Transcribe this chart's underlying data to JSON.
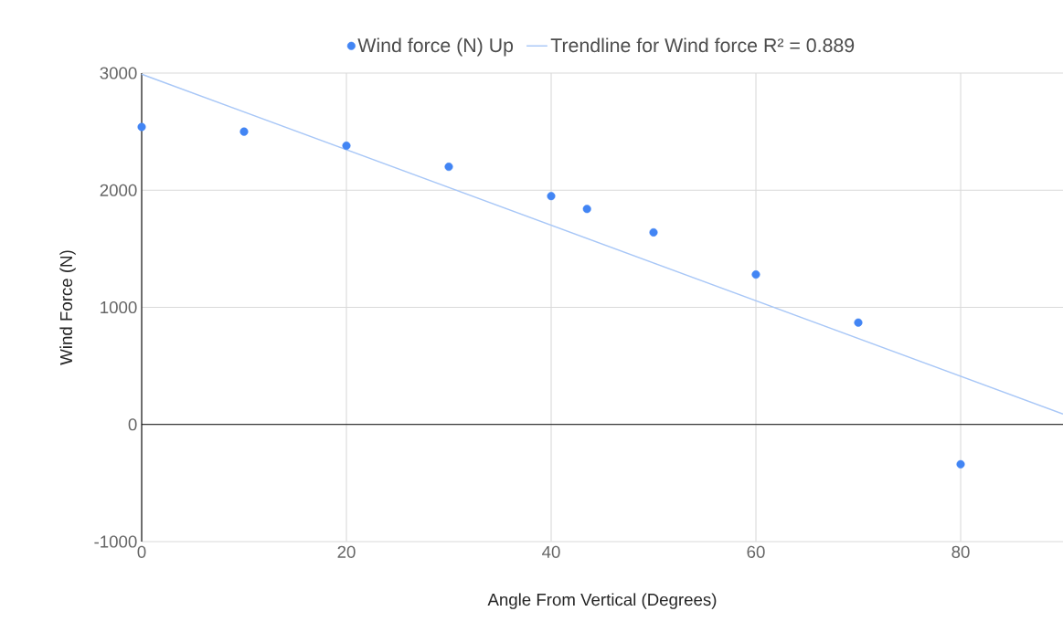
{
  "chart_data": {
    "type": "scatter",
    "xlabel": "Angle From Vertical (Degrees)",
    "ylabel": "Wind Force (N)",
    "xlim": [
      0,
      90
    ],
    "ylim": [
      -1000,
      3000
    ],
    "xticks": [
      0,
      20,
      40,
      60,
      80
    ],
    "yticks": [
      -1000,
      0,
      1000,
      2000,
      3000
    ],
    "grid": true,
    "legend": "top",
    "series": [
      {
        "name": "Wind force (N) Up",
        "marker": "circle",
        "color": "#4285f4",
        "x": [
          0,
          10,
          20,
          30,
          40,
          43.5,
          50,
          60,
          70,
          80
        ],
        "values": [
          2540,
          2500,
          2380,
          2200,
          1950,
          1840,
          1640,
          1280,
          870,
          -340
        ]
      },
      {
        "name": "Trendline for Wind force R² = 0.889",
        "type": "line",
        "marker": "none",
        "color": "#a8c7f7",
        "x": [
          0,
          90
        ],
        "values": [
          2990,
          90
        ]
      }
    ]
  }
}
